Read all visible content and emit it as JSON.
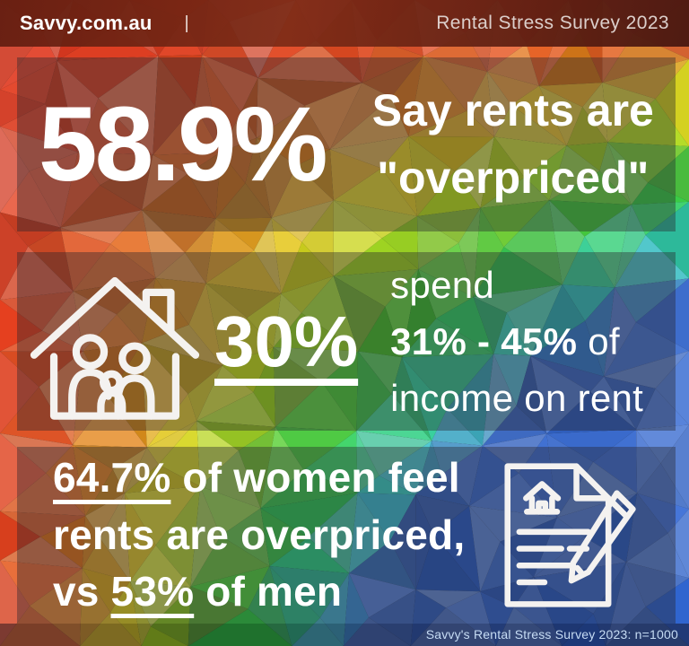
{
  "header": {
    "brand": "Savvy.com.au",
    "divider": "|",
    "title": "Rental Stress Survey 2023"
  },
  "panel1": {
    "stat": "58.9%",
    "caption_line1": "Say rents are",
    "caption_line2": "\"overpriced\""
  },
  "panel2": {
    "icon": "house-family-icon",
    "stat": "30%",
    "line1": "spend",
    "line2_bold": "31% - 45%",
    "line2_rest": " of",
    "line3": "income on rent"
  },
  "panel3": {
    "stat_women": "64.7%",
    "line1_rest": " of women feel",
    "line2": "rents are overpriced,",
    "line3_pre": "vs ",
    "stat_men": "53%",
    "line3_rest": " of men",
    "icon": "document-pencil-icon"
  },
  "footer": {
    "source": "Savvy's Rental Stress Survey 2023: n=1000"
  },
  "colors": {
    "text": "#ffffff",
    "header_bg": "#6e2316",
    "footer_text": "#c6dcf4",
    "panel_overlay": "rgba(40,38,46,0.40)"
  }
}
